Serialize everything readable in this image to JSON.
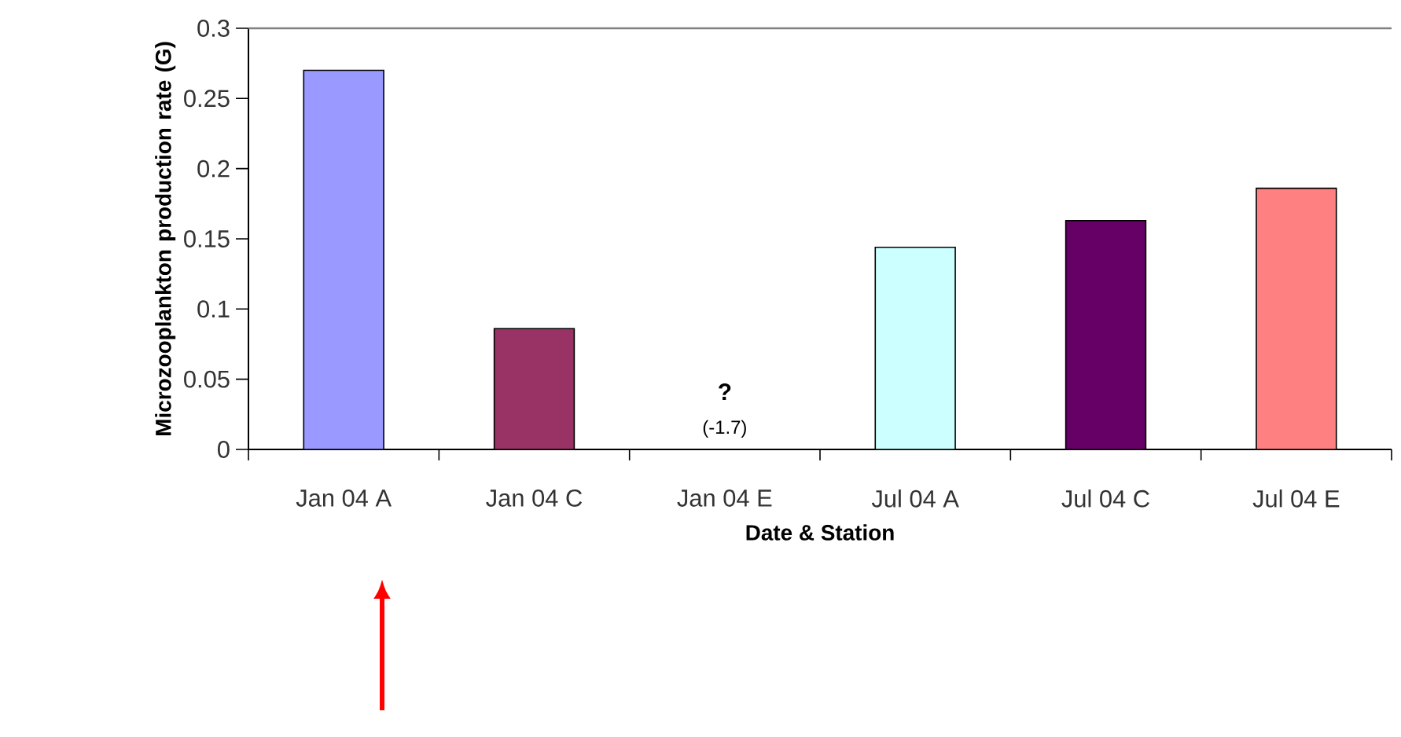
{
  "chart_data": {
    "type": "bar",
    "xlabel": "Date & Station",
    "ylabel": "Microzooplankton production rate (G)",
    "categories": [
      "Jan 04 A",
      "Jan 04 C",
      "Jan 04 E",
      "Jul 04 A",
      "Jul 04 C",
      "Jul 04 E"
    ],
    "values": [
      0.27,
      0.086,
      null,
      0.144,
      0.163,
      0.186
    ],
    "colors": [
      "#9999ff",
      "#993366",
      "#cccccc",
      "#ccffff",
      "#660066",
      "#ff8080"
    ],
    "ylim": [
      0,
      0.3
    ],
    "yticks": [
      0,
      0.05,
      0.1,
      0.15,
      0.2,
      0.25,
      0.3
    ],
    "annotations": [
      "?",
      "(-1.7)"
    ]
  }
}
